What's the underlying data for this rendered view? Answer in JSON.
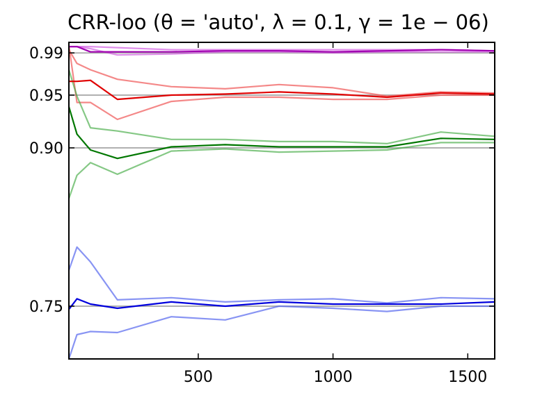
{
  "chart_data": {
    "type": "line",
    "title": "CRR-loo (θ = 'auto', λ = 0.1, γ = 1e − 06)",
    "xlim": [
      20,
      1600
    ],
    "ylim": [
      0.7,
      1.0
    ],
    "x_ticks": [
      500,
      1000,
      1500
    ],
    "x_tick_labels": [
      "500",
      "1000",
      "1500"
    ],
    "y_ticks": [
      0.75,
      0.9,
      0.95,
      0.99
    ],
    "y_tick_labels": [
      "0.75",
      "0.90",
      "0.95",
      "0.99"
    ],
    "grid": "horizontal lines at y ticks",
    "x": [
      20,
      50,
      100,
      200,
      400,
      600,
      800,
      1000,
      1200,
      1400,
      1600
    ],
    "series": [
      {
        "group": "0.99",
        "role": "mean",
        "color": "#a000b0",
        "opacity": 1.0,
        "values": [
          0.996,
          0.996,
          0.991,
          0.991,
          0.991,
          0.992,
          0.992,
          0.991,
          0.992,
          0.993,
          0.992
        ]
      },
      {
        "group": "0.99",
        "role": "upper",
        "color": "#cc44dd",
        "opacity": 0.6,
        "values": [
          0.996,
          0.996,
          0.996,
          0.995,
          0.993,
          0.993,
          0.993,
          0.993,
          0.993,
          0.993,
          0.992
        ]
      },
      {
        "group": "0.99",
        "role": "lower",
        "color": "#cc44dd",
        "opacity": 0.6,
        "values": [
          0.996,
          0.996,
          0.994,
          0.988,
          0.989,
          0.991,
          0.991,
          0.99,
          0.991,
          0.991,
          0.991
        ]
      },
      {
        "group": "0.95",
        "role": "mean",
        "color": "#e00000",
        "opacity": 1.0,
        "values": [
          0.963,
          0.963,
          0.964,
          0.946,
          0.95,
          0.951,
          0.953,
          0.951,
          0.948,
          0.952,
          0.951
        ]
      },
      {
        "group": "0.95",
        "role": "upper",
        "color": "#f06060",
        "opacity": 0.75,
        "values": [
          0.993,
          0.98,
          0.974,
          0.965,
          0.958,
          0.956,
          0.96,
          0.957,
          0.949,
          0.953,
          0.952
        ]
      },
      {
        "group": "0.95",
        "role": "lower",
        "color": "#f06060",
        "opacity": 0.75,
        "values": [
          0.997,
          0.943,
          0.943,
          0.927,
          0.944,
          0.948,
          0.948,
          0.946,
          0.946,
          0.95,
          0.95
        ]
      },
      {
        "group": "0.90",
        "role": "mean",
        "color": "#007700",
        "opacity": 1.0,
        "values": [
          0.939,
          0.913,
          0.898,
          0.89,
          0.901,
          0.903,
          0.901,
          0.901,
          0.901,
          0.909,
          0.908
        ]
      },
      {
        "group": "0.90",
        "role": "upper",
        "color": "#44aa44",
        "opacity": 0.65,
        "values": [
          0.974,
          0.949,
          0.919,
          0.916,
          0.908,
          0.908,
          0.906,
          0.906,
          0.904,
          0.915,
          0.911
        ]
      },
      {
        "group": "0.90",
        "role": "lower",
        "color": "#44aa44",
        "opacity": 0.65,
        "values": [
          0.852,
          0.874,
          0.886,
          0.875,
          0.897,
          0.899,
          0.896,
          0.897,
          0.898,
          0.905,
          0.905
        ]
      },
      {
        "group": "0.75",
        "role": "mean",
        "color": "#0000dd",
        "opacity": 1.0,
        "values": [
          0.747,
          0.757,
          0.752,
          0.748,
          0.754,
          0.75,
          0.754,
          0.752,
          0.752,
          0.752,
          0.754
        ]
      },
      {
        "group": "0.75",
        "role": "upper",
        "color": "#5566ee",
        "opacity": 0.7,
        "values": [
          0.784,
          0.806,
          0.792,
          0.756,
          0.758,
          0.754,
          0.756,
          0.757,
          0.753,
          0.758,
          0.757
        ]
      },
      {
        "group": "0.75",
        "role": "lower",
        "color": "#5566ee",
        "opacity": 0.7,
        "values": [
          0.7,
          0.723,
          0.726,
          0.725,
          0.74,
          0.737,
          0.75,
          0.748,
          0.745,
          0.75,
          0.75
        ]
      }
    ]
  }
}
